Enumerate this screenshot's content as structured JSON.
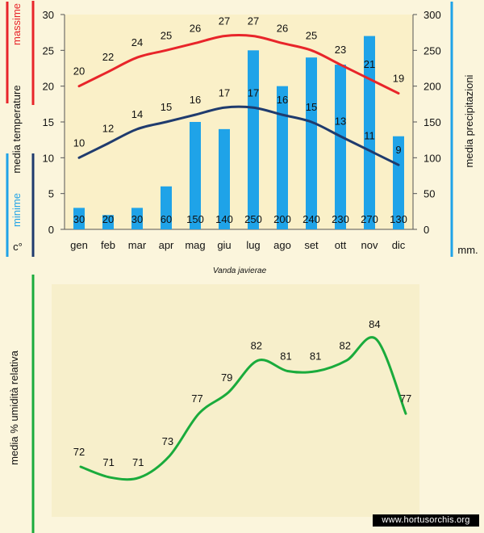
{
  "chart_data": [
    {
      "type": "bar+line",
      "title": "Vanda javierae",
      "categories": [
        "gen",
        "feb",
        "mar",
        "apr",
        "mag",
        "giu",
        "lug",
        "ago",
        "set",
        "ott",
        "nov",
        "dic"
      ],
      "series": [
        {
          "name": "massime",
          "type": "line",
          "axis": "left",
          "color": "#e8252a",
          "values": [
            20,
            22,
            24,
            25,
            26,
            27,
            27,
            26,
            25,
            23,
            21,
            19
          ]
        },
        {
          "name": "minime",
          "type": "line",
          "axis": "left",
          "color": "#1f3b6e",
          "values": [
            10,
            12,
            14,
            15,
            16,
            17,
            17,
            16,
            15,
            13,
            11,
            9
          ]
        },
        {
          "name": "media precipitazioni",
          "type": "bar",
          "axis": "right",
          "color": "#1fa3e8",
          "values": [
            30,
            20,
            30,
            60,
            150,
            140,
            250,
            200,
            240,
            230,
            270,
            130
          ]
        }
      ],
      "left_axis": {
        "label_top": "massime",
        "label_middle": "media  temperature",
        "label_bottom": "minime",
        "unit": "c°",
        "ylim": [
          0,
          30
        ],
        "ticks": [
          0,
          5,
          10,
          15,
          20,
          25,
          30
        ]
      },
      "right_axis": {
        "label": "media  precipitazioni",
        "unit": "mm.",
        "ylim": [
          0,
          300
        ],
        "ticks": [
          0,
          50,
          100,
          150,
          200,
          250,
          300
        ]
      },
      "colors": {
        "max_accent": "#e8252a",
        "min_accent": "#1fa3e8",
        "min_line": "#1f3b6e",
        "precip_accent": "#1fa3e8",
        "plot_bg": "#faf0c8"
      }
    },
    {
      "type": "line",
      "ylabel": "media %  umidità relativa",
      "series": [
        {
          "name": "umidità relativa",
          "color": "#1aab3c",
          "values": [
            72,
            71,
            71,
            73,
            77,
            79,
            82,
            81,
            81,
            82,
            84,
            77
          ]
        }
      ],
      "ylim": [
        68,
        86
      ],
      "colors": {
        "accent": "#1aab3c",
        "plot_bg": "#f7efcb"
      }
    }
  ],
  "watermark": "www.hortusorchis.org"
}
